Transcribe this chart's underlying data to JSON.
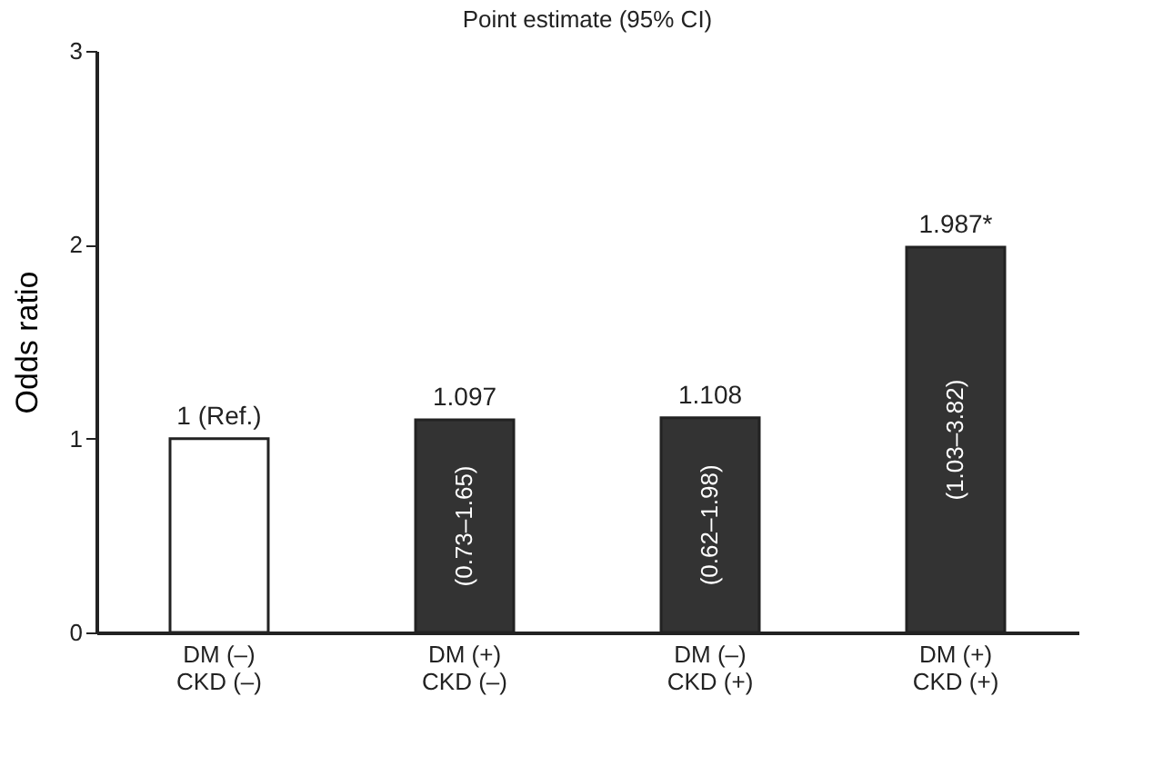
{
  "chart_data": {
    "type": "bar",
    "title": "Point estimate (95% CI)",
    "ylabel": "Odds ratio",
    "categories": [
      "DM (–)\nCKD (–)",
      "DM (+)\nCKD (–)",
      "DM (–)\nCKD (+)",
      "DM (+)\nCKD (+)"
    ],
    "values": [
      1,
      1.097,
      1.108,
      1.987
    ],
    "colors": [
      "#ffffff",
      "#333333",
      "#333333",
      "#333333"
    ],
    "value_labels": [
      "1 (Ref.)",
      "1.097",
      "1.108",
      "1.987*"
    ],
    "annotations": [
      "(0.73–1.65)",
      "(0.62–1.98)",
      "(1.03–3.82)"
    ],
    "ylim": [
      0,
      3
    ],
    "yticks": [
      0,
      1,
      2,
      3
    ],
    "grid": false
  }
}
